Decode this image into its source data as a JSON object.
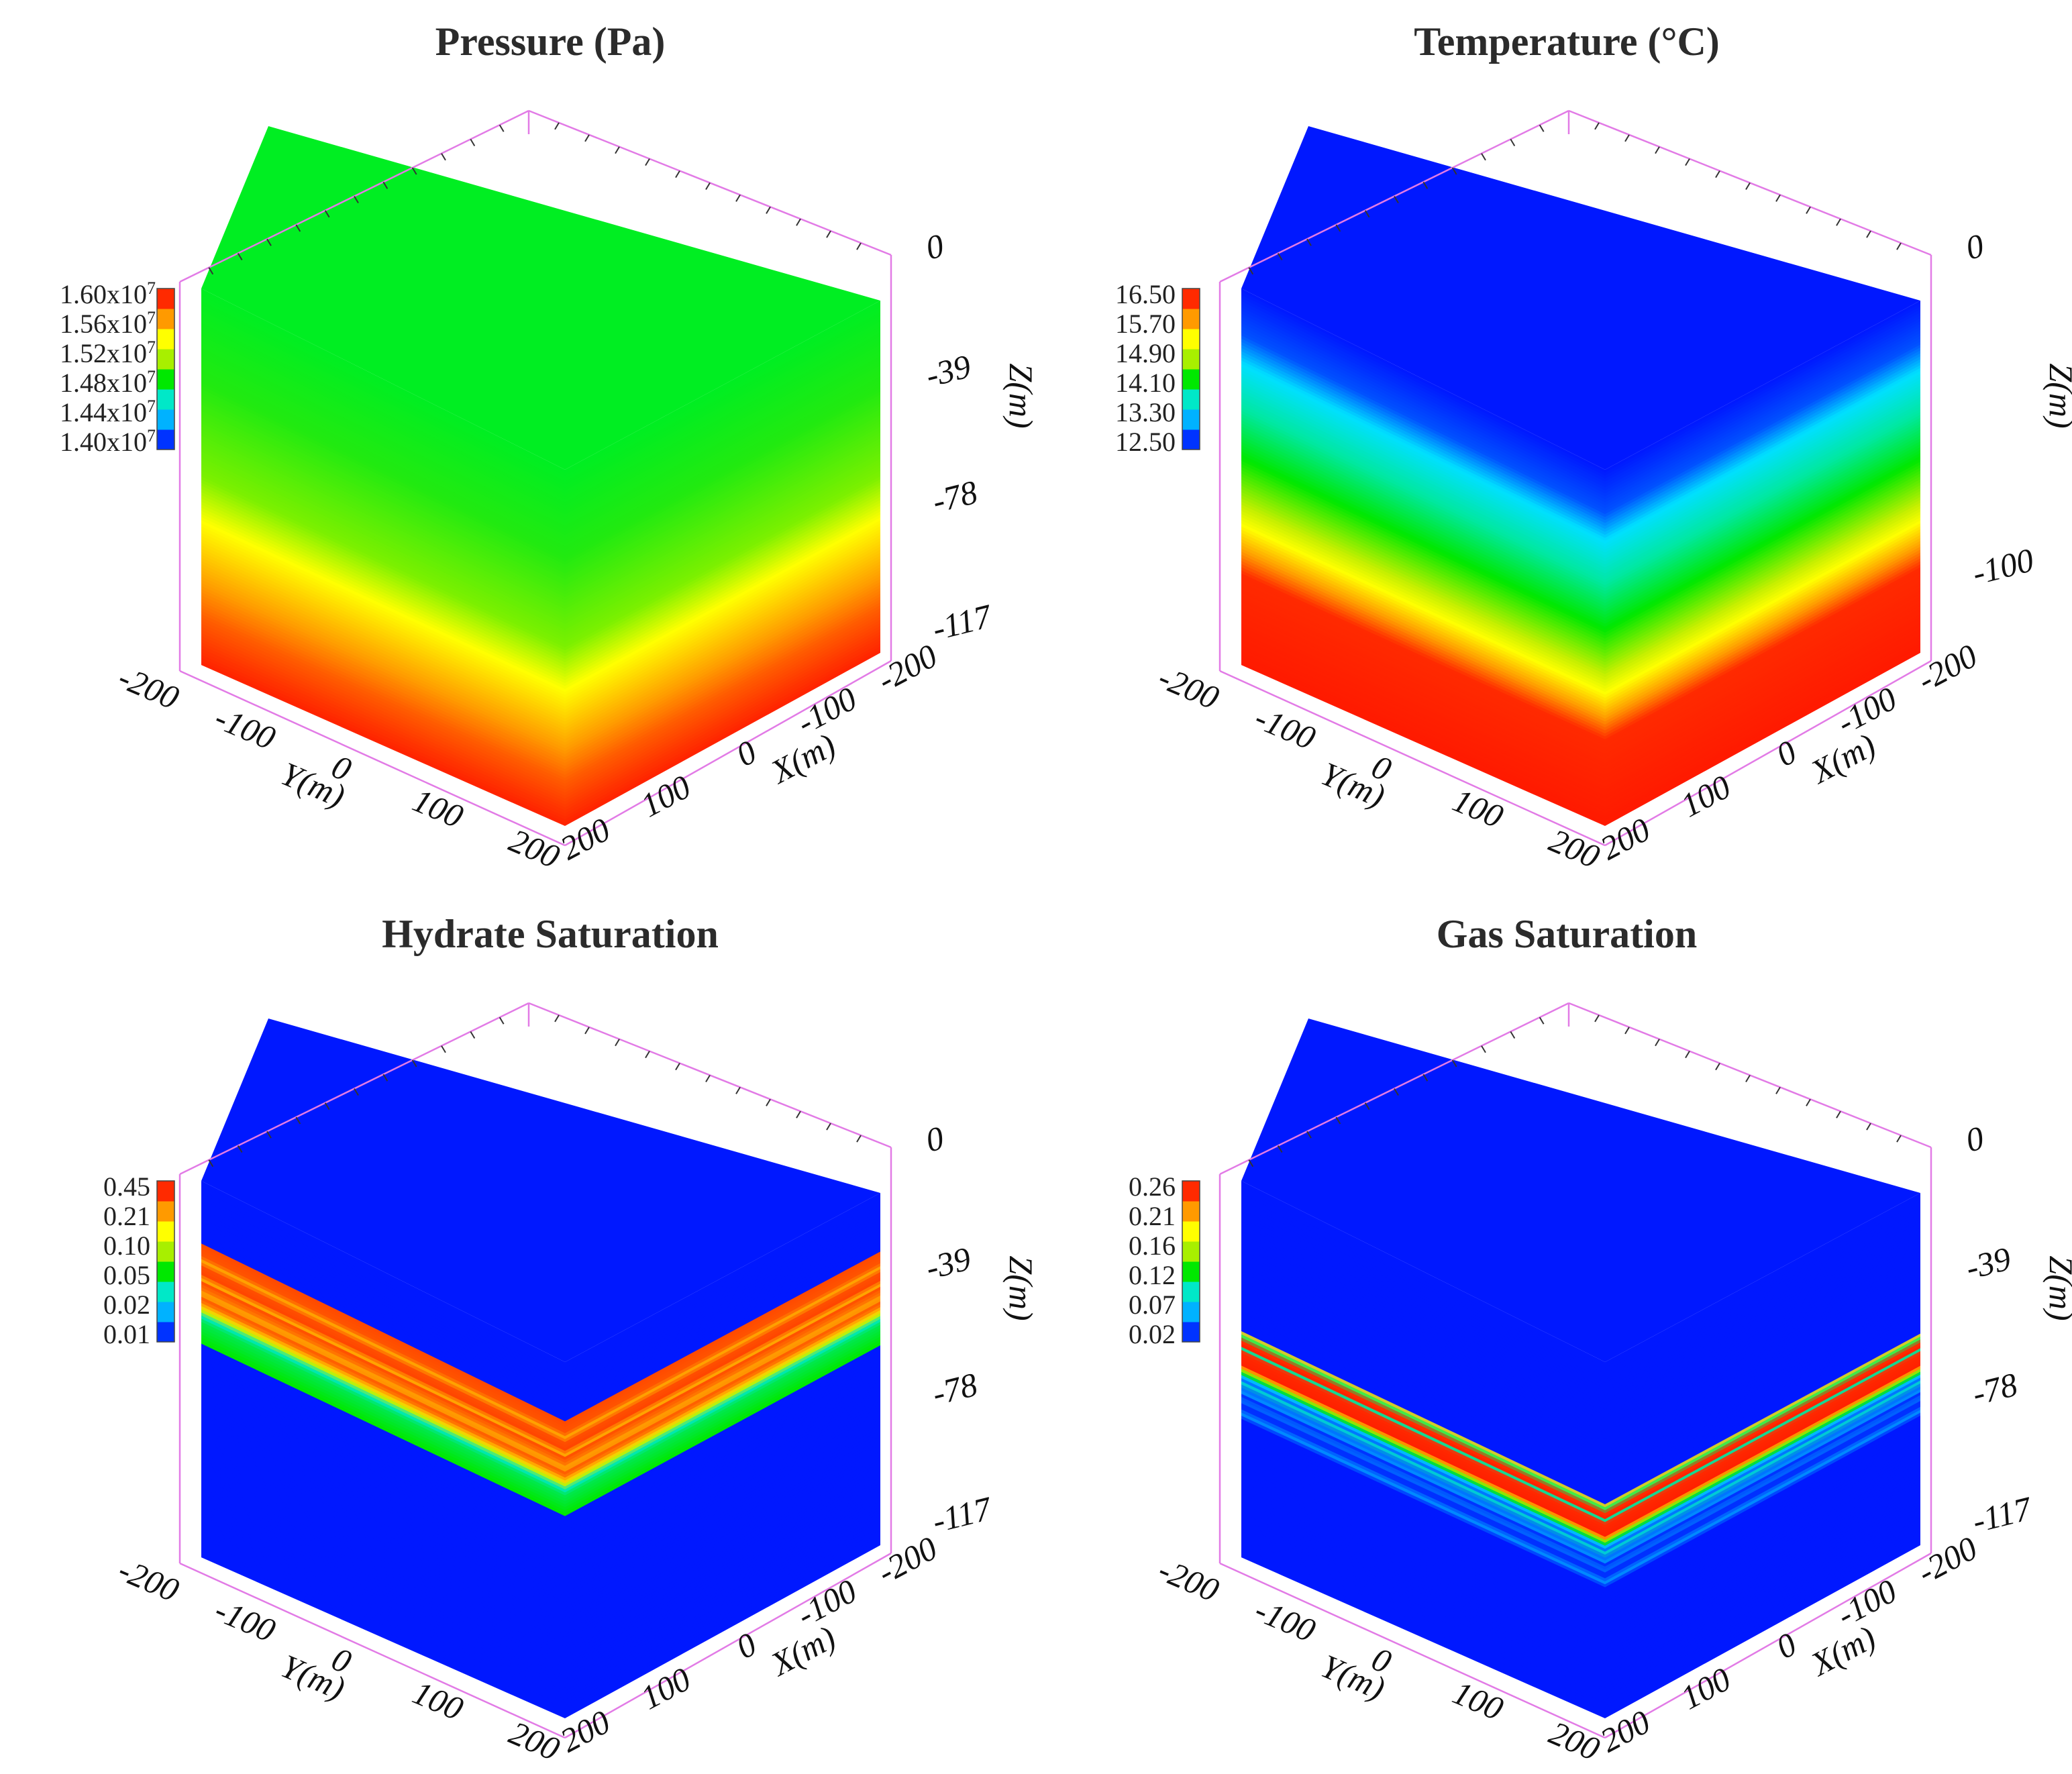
{
  "chart_data": [
    {
      "type": "heatmap",
      "subtype": "3d-block-contour",
      "title": "Pressure (Pa)",
      "colorbar": {
        "labels": [
          "1.60x10^7",
          "1.56x10^7",
          "1.52x10^7",
          "1.48x10^7",
          "1.44x10^7",
          "1.40x10^7"
        ],
        "mantissas": [
          "1.60x10",
          "1.56x10",
          "1.52x10",
          "1.48x10",
          "1.44x10",
          "1.40x10"
        ],
        "exponent": "7",
        "min": 14000000,
        "max": 16000000,
        "colors": [
          "#0033ff",
          "#00b2ff",
          "#00e8c8",
          "#00e800",
          "#a8ef00",
          "#ffff00",
          "#ff9a00",
          "#ff2a00"
        ]
      },
      "z_ticks": [
        "0",
        "-39",
        "-78",
        "-117"
      ],
      "z_values": [
        0,
        -39,
        -78,
        -117
      ],
      "z_range": [
        0,
        -117
      ],
      "x_ticks": [
        "-200",
        "-100",
        "0",
        "100",
        "200"
      ],
      "y_ticks": [
        "-200",
        "-100",
        "0",
        "100",
        "200"
      ],
      "xlabel": "X(m)",
      "ylabel": "Y(m)",
      "zlabel": "Z(m)",
      "top_face_color": "#00ee22",
      "side_gradient": [
        {
          "pos": 0.0,
          "color": "#00ee22"
        },
        {
          "pos": 0.25,
          "color": "#22ea10"
        },
        {
          "pos": 0.5,
          "color": "#7cf000"
        },
        {
          "pos": 0.62,
          "color": "#ffff00"
        },
        {
          "pos": 0.78,
          "color": "#ffa000"
        },
        {
          "pos": 0.88,
          "color": "#ff5a00"
        },
        {
          "pos": 1.0,
          "color": "#ff2200"
        }
      ]
    },
    {
      "type": "heatmap",
      "subtype": "3d-block-contour",
      "title": "Temperature (°C)",
      "colorbar": {
        "labels": [
          "16.50",
          "15.70",
          "14.90",
          "14.10",
          "13.30",
          "12.50"
        ],
        "min": 12.5,
        "max": 16.5,
        "colors": [
          "#0033ff",
          "#00b2ff",
          "#00e8c8",
          "#00e800",
          "#a8ef00",
          "#ffff00",
          "#ff9a00",
          "#ff2a00"
        ]
      },
      "z_ticks": [
        "0",
        "-100"
      ],
      "z_values": [
        0,
        -100
      ],
      "z_range": [
        0,
        -117
      ],
      "x_ticks": [
        "-200",
        "-100",
        "0",
        "100",
        "200"
      ],
      "y_ticks": [
        "-200",
        "-100",
        "0",
        "100",
        "200"
      ],
      "xlabel": "X(m)",
      "ylabel": "Y(m)",
      "zlabel": "Z(m)",
      "top_face_color": "#0018ff",
      "side_gradient": [
        {
          "pos": 0.0,
          "color": "#0018ff"
        },
        {
          "pos": 0.12,
          "color": "#0050ff"
        },
        {
          "pos": 0.2,
          "color": "#00e0ff"
        },
        {
          "pos": 0.32,
          "color": "#00e8a0"
        },
        {
          "pos": 0.45,
          "color": "#00e800"
        },
        {
          "pos": 0.58,
          "color": "#c8f000"
        },
        {
          "pos": 0.63,
          "color": "#ffff00"
        },
        {
          "pos": 0.7,
          "color": "#ff9a00"
        },
        {
          "pos": 0.76,
          "color": "#ff2a00"
        },
        {
          "pos": 1.0,
          "color": "#ff1a00"
        }
      ]
    },
    {
      "type": "heatmap",
      "subtype": "3d-block-contour",
      "title": "Hydrate Saturation",
      "colorbar": {
        "labels": [
          "0.45",
          "0.21",
          "0.10",
          "0.05",
          "0.02",
          "0.01"
        ],
        "min": 0.01,
        "max": 0.45,
        "colors": [
          "#0033ff",
          "#00b2ff",
          "#00e8c8",
          "#00e800",
          "#a8ef00",
          "#ffff00",
          "#ff9a00",
          "#ff2a00"
        ]
      },
      "z_ticks": [
        "0",
        "-39",
        "-78",
        "-117"
      ],
      "z_values": [
        0,
        -39,
        -78,
        -117
      ],
      "z_range": [
        0,
        -117
      ],
      "x_ticks": [
        "-200",
        "-100",
        "0",
        "100",
        "200"
      ],
      "y_ticks": [
        "-200",
        "-100",
        "0",
        "100",
        "200"
      ],
      "xlabel": "X(m)",
      "ylabel": "Y(m)",
      "zlabel": "Z(m)",
      "top_face_color": "#0018ff",
      "side_gradient": [
        {
          "pos": 0.0,
          "color": "#0018ff"
        },
        {
          "pos": 0.165,
          "color": "#0018ff"
        },
        {
          "pos": 0.17,
          "color": "#ff4a00"
        },
        {
          "pos": 0.2,
          "color": "#ff5500"
        },
        {
          "pos": 0.215,
          "color": "#ffb000"
        },
        {
          "pos": 0.225,
          "color": "#ff5000"
        },
        {
          "pos": 0.25,
          "color": "#ff4400"
        },
        {
          "pos": 0.26,
          "color": "#ffc000"
        },
        {
          "pos": 0.27,
          "color": "#ff5000"
        },
        {
          "pos": 0.29,
          "color": "#ff7a00"
        },
        {
          "pos": 0.3,
          "color": "#ffb000"
        },
        {
          "pos": 0.315,
          "color": "#ff5000"
        },
        {
          "pos": 0.335,
          "color": "#ffcc00"
        },
        {
          "pos": 0.345,
          "color": "#c8f000"
        },
        {
          "pos": 0.36,
          "color": "#00e8c0"
        },
        {
          "pos": 0.375,
          "color": "#00e850"
        },
        {
          "pos": 0.43,
          "color": "#00e800"
        },
        {
          "pos": 0.435,
          "color": "#0018ff"
        },
        {
          "pos": 1.0,
          "color": "#0018ff"
        }
      ]
    },
    {
      "type": "heatmap",
      "subtype": "3d-block-contour",
      "title": "Gas Saturation",
      "colorbar": {
        "labels": [
          "0.26",
          "0.21",
          "0.16",
          "0.12",
          "0.07",
          "0.02"
        ],
        "min": 0.02,
        "max": 0.26,
        "colors": [
          "#0033ff",
          "#00b2ff",
          "#00e8c8",
          "#00e800",
          "#a8ef00",
          "#ffff00",
          "#ff9a00",
          "#ff2a00"
        ]
      },
      "z_ticks": [
        "0",
        "-39",
        "-78",
        "-117"
      ],
      "z_values": [
        0,
        -39,
        -78,
        -117
      ],
      "z_range": [
        0,
        -117
      ],
      "x_ticks": [
        "-200",
        "-100",
        "0",
        "100",
        "200"
      ],
      "y_ticks": [
        "-200",
        "-100",
        "0",
        "100",
        "200"
      ],
      "xlabel": "X(m)",
      "ylabel": "Y(m)",
      "zlabel": "Z(m)",
      "top_face_color": "#0018ff",
      "side_gradient": [
        {
          "pos": 0.0,
          "color": "#0018ff"
        },
        {
          "pos": 0.4,
          "color": "#0018ff"
        },
        {
          "pos": 0.405,
          "color": "#ffee00"
        },
        {
          "pos": 0.415,
          "color": "#00e860"
        },
        {
          "pos": 0.425,
          "color": "#ff3000"
        },
        {
          "pos": 0.44,
          "color": "#ff2000"
        },
        {
          "pos": 0.445,
          "color": "#00e8a0"
        },
        {
          "pos": 0.455,
          "color": "#ff2a00"
        },
        {
          "pos": 0.49,
          "color": "#ff2000"
        },
        {
          "pos": 0.5,
          "color": "#ffe000"
        },
        {
          "pos": 0.51,
          "color": "#00e800"
        },
        {
          "pos": 0.52,
          "color": "#00c0ff"
        },
        {
          "pos": 0.53,
          "color": "#0070ff"
        },
        {
          "pos": 0.54,
          "color": "#00e8c8"
        },
        {
          "pos": 0.55,
          "color": "#0050ff"
        },
        {
          "pos": 0.56,
          "color": "#00a8ff"
        },
        {
          "pos": 0.57,
          "color": "#0030ff"
        },
        {
          "pos": 0.585,
          "color": "#0070ff"
        },
        {
          "pos": 0.6,
          "color": "#0018ff"
        },
        {
          "pos": 0.62,
          "color": "#0090ff"
        },
        {
          "pos": 0.635,
          "color": "#0018ff"
        },
        {
          "pos": 1.0,
          "color": "#0018ff"
        }
      ]
    }
  ]
}
